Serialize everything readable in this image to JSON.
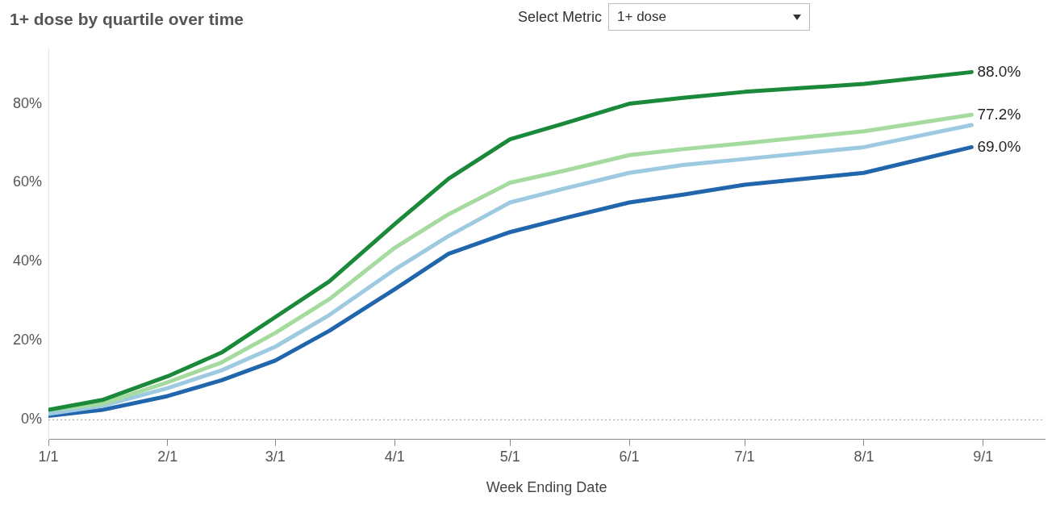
{
  "chart_data": {
    "type": "line",
    "title": "1+ dose by quartile over time",
    "xlabel": "Week Ending Date",
    "annotations": [
      "Select Metric",
      "1+ dose"
    ],
    "x": [
      "--01-01",
      "--01-15",
      "--02-01",
      "--02-15",
      "--03-01",
      "--03-15",
      "--04-01",
      "--04-15",
      "--05-01",
      "--05-15",
      "--06-01",
      "--06-15",
      "--07-01",
      "--08-01",
      "--08-29"
    ],
    "series": [
      {
        "color": "#1a8a3a",
        "values": [
          2.5,
          5,
          11,
          17,
          26,
          35,
          49.5,
          61,
          71,
          75,
          80,
          81.5,
          83,
          85,
          88.0
        ],
        "value_labels": [
          null,
          null,
          null,
          null,
          null,
          null,
          null,
          null,
          null,
          null,
          null,
          null,
          null,
          null,
          "88.0%"
        ]
      },
      {
        "color": "#a6dba0",
        "values": [
          2.5,
          4,
          9.5,
          14.5,
          22,
          30.5,
          43.5,
          52,
          60,
          63,
          67,
          68.5,
          70,
          73,
          77.2
        ],
        "value_labels": [
          null,
          null,
          null,
          null,
          null,
          null,
          null,
          null,
          null,
          null,
          null,
          null,
          null,
          null,
          "77.2%"
        ]
      },
      {
        "color": "#9ecae1",
        "values": [
          1.5,
          3.5,
          8,
          12.5,
          18.5,
          26.5,
          38,
          46.5,
          55,
          58.5,
          62.5,
          64.5,
          66,
          69,
          74.6
        ]
      },
      {
        "color": "#2166ac",
        "values": [
          1,
          2.5,
          6,
          10,
          15,
          22.5,
          33,
          42,
          47.5,
          51,
          55,
          57,
          59.5,
          62.5,
          69.0
        ],
        "value_labels": [
          null,
          null,
          null,
          null,
          null,
          null,
          null,
          null,
          null,
          null,
          null,
          null,
          null,
          null,
          "69.0%"
        ]
      }
    ],
    "xlim": [
      "--01-01",
      "--09-17"
    ],
    "xticks": [
      {
        "value": "--01-01",
        "label": "1/1"
      },
      {
        "value": "--02-01",
        "label": "2/1"
      },
      {
        "value": "--03-01",
        "label": "3/1"
      },
      {
        "value": "--04-01",
        "label": "4/1"
      },
      {
        "value": "--05-01",
        "label": "5/1"
      },
      {
        "value": "--06-01",
        "label": "6/1"
      },
      {
        "value": "--07-01",
        "label": "7/1"
      },
      {
        "value": "--08-01",
        "label": "8/1"
      },
      {
        "value": "--09-01",
        "label": "9/1"
      }
    ],
    "ylim": [
      -5,
      94
    ],
    "yticks": [
      {
        "value": 0,
        "label": "0%"
      },
      {
        "value": 20,
        "label": "20%"
      },
      {
        "value": 40,
        "label": "40%"
      },
      {
        "value": 60,
        "label": "60%"
      },
      {
        "value": 80,
        "label": "80%"
      }
    ],
    "ref_lines": [
      {
        "axis": "y",
        "value": 0,
        "color": "#999999",
        "line_style": "dotted"
      }
    ],
    "grid": false,
    "legend": false,
    "marker": "none",
    "line_style": "solid"
  }
}
